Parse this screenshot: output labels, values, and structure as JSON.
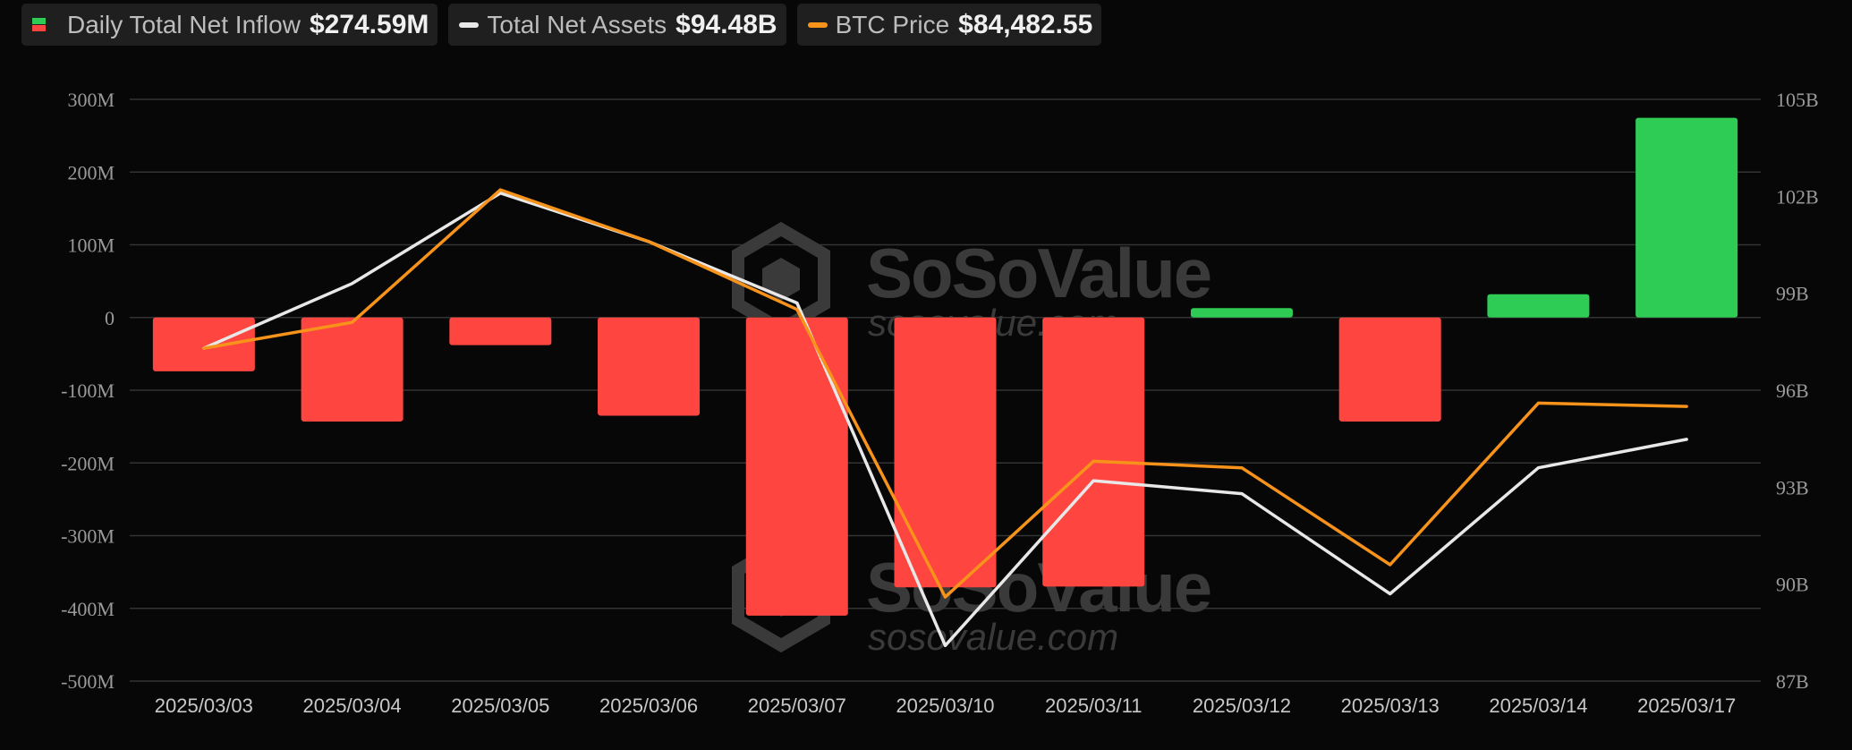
{
  "legend": {
    "inflow_label": "Daily Total Net Inflow",
    "inflow_value": "$274.59M",
    "assets_label": "Total Net Assets",
    "assets_value": "$94.48B",
    "btc_label": "BTC Price",
    "btc_value": "$84,482.55"
  },
  "watermark": {
    "brand": "SoSoValue",
    "url": "sosovalue.com"
  },
  "colors": {
    "positive": "#2ecc55",
    "negative": "#ff453f",
    "net_assets_line": "#e8e8e8",
    "btc_line": "#f7931a",
    "grid": "#333333",
    "background": "#070707"
  },
  "chart_data": {
    "type": "bar",
    "categories": [
      "2025/03/03",
      "2025/03/04",
      "2025/03/05",
      "2025/03/06",
      "2025/03/07",
      "2025/03/10",
      "2025/03/11",
      "2025/03/12",
      "2025/03/13",
      "2025/03/14",
      "2025/03/17"
    ],
    "series": [
      {
        "name": "Daily Total Net Inflow",
        "type": "bar",
        "axis": "left",
        "unit": "M",
        "values": [
          -74,
          -143,
          -38,
          -135,
          -410,
          -371,
          -370,
          13,
          -143,
          32,
          274.59
        ]
      },
      {
        "name": "Total Net Assets",
        "type": "line",
        "axis": "right",
        "unit": "B",
        "values": [
          97.3,
          99.3,
          102.1,
          100.6,
          98.7,
          88.1,
          93.2,
          92.8,
          89.7,
          93.6,
          94.48
        ]
      },
      {
        "name": "BTC Price",
        "type": "line",
        "axis": "right_scaled",
        "values": [
          97.3,
          98.1,
          102.2,
          100.6,
          98.5,
          89.6,
          93.8,
          93.6,
          90.6,
          95.6,
          95.5
        ]
      }
    ],
    "y_left": {
      "range": [
        -500,
        300
      ],
      "ticks": [
        "300M",
        "200M",
        "100M",
        "0",
        "-100M",
        "-200M",
        "-300M",
        "-400M",
        "-500M"
      ],
      "tick_values": [
        300,
        200,
        100,
        0,
        -100,
        -200,
        -300,
        -400,
        -500
      ]
    },
    "y_right": {
      "range": [
        87,
        105
      ],
      "ticks": [
        "105B",
        "102B",
        "99B",
        "96B",
        "93B",
        "90B",
        "87B"
      ],
      "tick_values": [
        105,
        102,
        99,
        96,
        93,
        90,
        87
      ]
    },
    "grid": true,
    "legend_position": "top-left"
  }
}
